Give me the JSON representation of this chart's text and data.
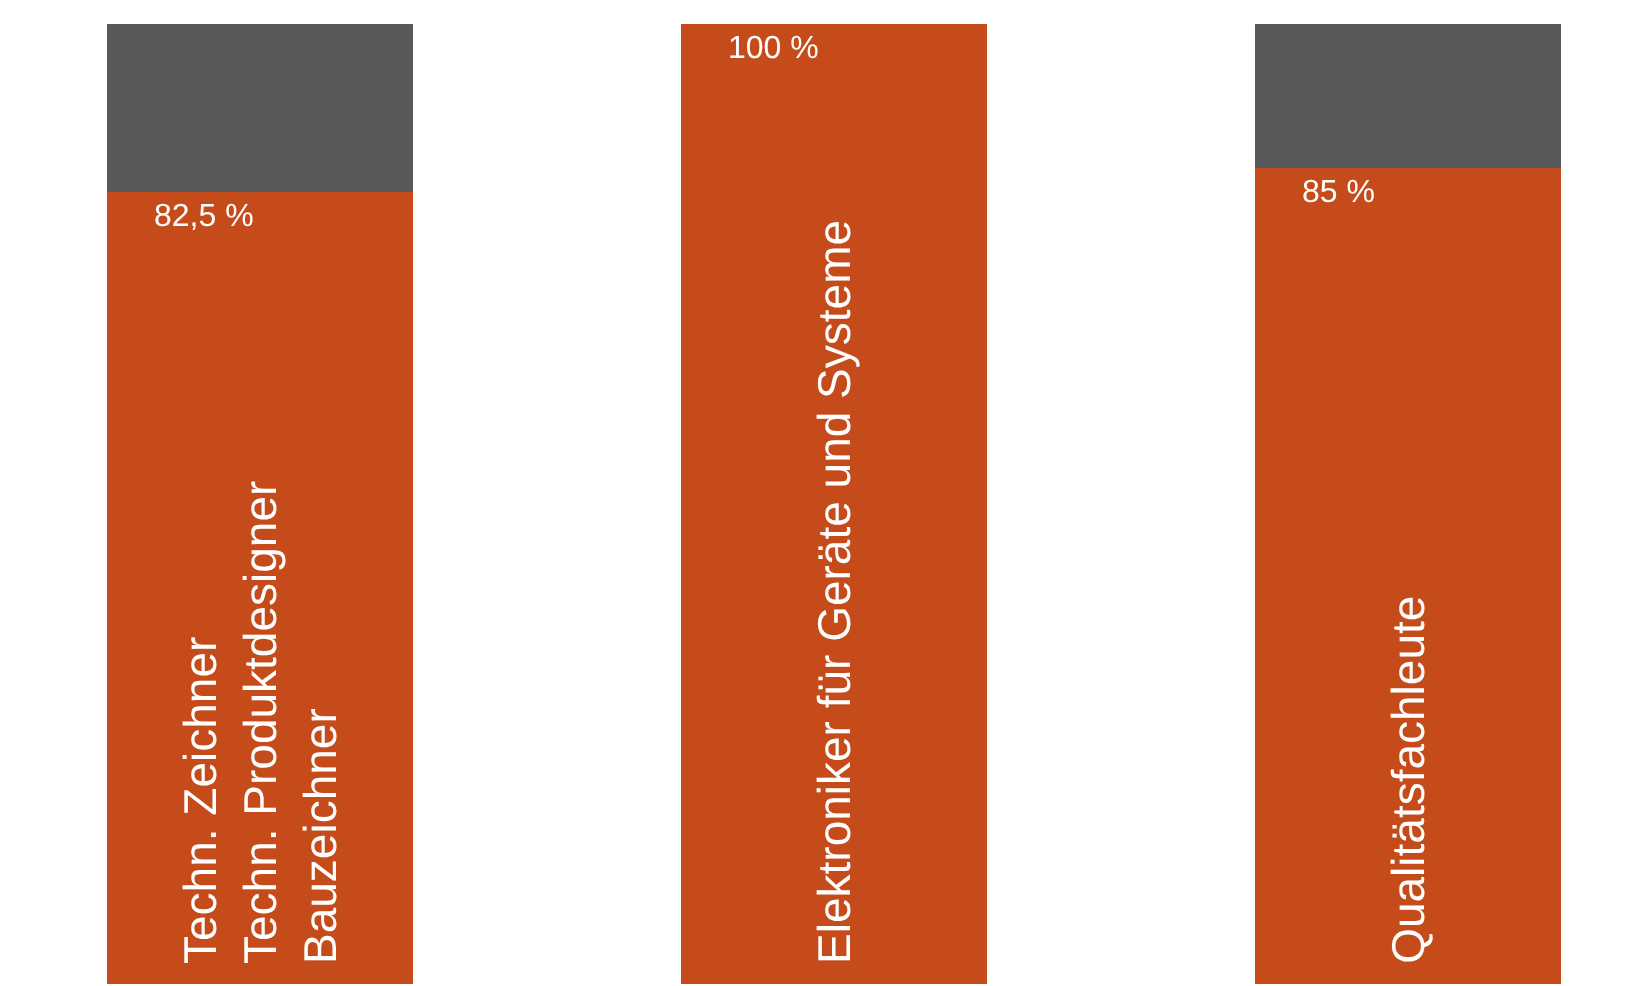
{
  "chart_data": {
    "type": "bar",
    "stacked": true,
    "categories": [
      "Techn. Zeichner\nTechn. Produktdesigner\nBauzeichner",
      "Elektroniker für Geräte und Systeme",
      "Qualitätsfachleute"
    ],
    "series": [
      {
        "color": "#c54b1b",
        "values": [
          82.5,
          100,
          85
        ],
        "value_labels": [
          "82,5 %",
          "100 %",
          "85 %"
        ]
      },
      {
        "color": "#58595b",
        "values": [
          17.5,
          0,
          15
        ]
      }
    ]
  }
}
